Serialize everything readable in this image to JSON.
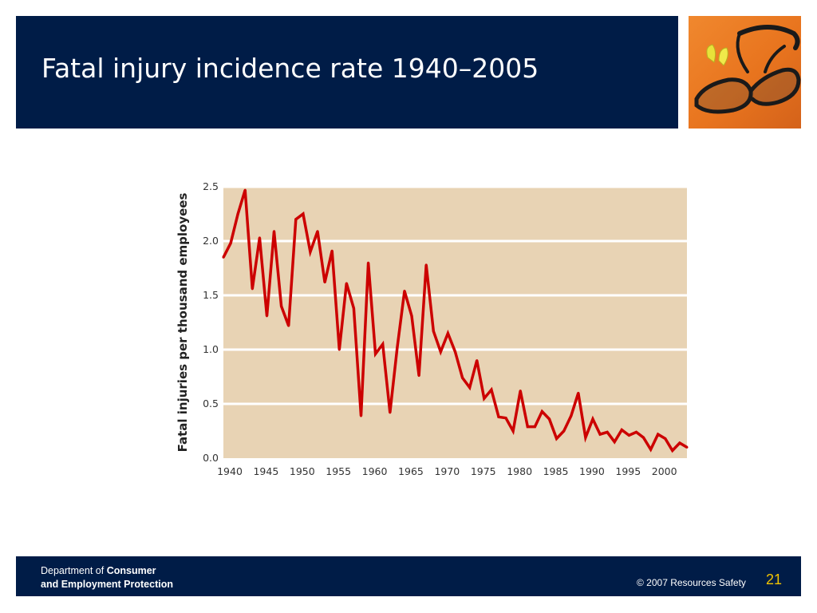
{
  "slide": {
    "title": "Fatal injury incidence rate 1940–2005",
    "page_number": "21"
  },
  "footer": {
    "dept_prefix": "Department of ",
    "dept_bold_1": "Consumer",
    "dept_bold_2": "and Employment Protection",
    "copyright": "© 2007 Resources Safety"
  },
  "photo": {
    "subject_icon": "safety-glasses-and-earplugs"
  },
  "colors": {
    "navy": "#001c47",
    "plot_background": "#e8d3b4",
    "line": "#cc0000",
    "gridline": "#ffffff",
    "page_number": "#f2c400"
  },
  "chart_data": {
    "type": "line",
    "title": "",
    "xlabel": "",
    "ylabel": "Fatal injuries per thousand employees",
    "xlim": [
      1940,
      2004
    ],
    "ylim": [
      0,
      2.5
    ],
    "x_ticks": [
      1940,
      1945,
      1950,
      1955,
      1960,
      1965,
      1970,
      1975,
      1980,
      1985,
      1990,
      1995,
      2000
    ],
    "x_tick_labels": [
      "1940",
      "1945",
      "1950",
      "1955",
      "1960",
      "1965",
      "1970",
      "1975",
      "1980",
      "1985",
      "1990",
      "1995",
      "2000"
    ],
    "y_ticks": [
      0,
      0.5,
      1.0,
      1.5,
      2.0,
      2.5
    ],
    "y_tick_labels": [
      "0.0",
      "0.5",
      "1.0",
      "1.5",
      "2.0",
      "2.5"
    ],
    "grid": true,
    "legend": "none",
    "series": [
      {
        "x": [
          1940,
          1941,
          1942,
          1943,
          1944,
          1945,
          1946,
          1947,
          1948,
          1949,
          1950,
          1951,
          1952,
          1953,
          1954,
          1955,
          1956,
          1957,
          1958,
          1959,
          1960,
          1961,
          1962,
          1963,
          1964,
          1965,
          1966,
          1967,
          1968,
          1969,
          1970,
          1971,
          1972,
          1973,
          1974,
          1975,
          1976,
          1977,
          1978,
          1979,
          1980,
          1981,
          1982,
          1983,
          1984,
          1985,
          1986,
          1987,
          1988,
          1989,
          1990,
          1991,
          1992,
          1993,
          1994,
          1995,
          1996,
          1997,
          1998,
          1999,
          2000,
          2001,
          2002,
          2003,
          2004
        ],
        "y": [
          1.85,
          1.98,
          2.25,
          2.47,
          1.56,
          2.03,
          1.31,
          2.09,
          1.4,
          1.22,
          2.2,
          2.25,
          1.9,
          2.09,
          1.62,
          1.91,
          1.0,
          1.61,
          1.38,
          0.39,
          1.8,
          0.96,
          1.05,
          0.42,
          1.02,
          1.54,
          1.31,
          0.76,
          1.78,
          1.17,
          0.98,
          1.15,
          0.98,
          0.74,
          0.65,
          0.9,
          0.55,
          0.63,
          0.38,
          0.37,
          0.25,
          0.62,
          0.29,
          0.29,
          0.43,
          0.36,
          0.18,
          0.25,
          0.39,
          0.6,
          0.19,
          0.36,
          0.22,
          0.24,
          0.15,
          0.26,
          0.21,
          0.24,
          0.19,
          0.08,
          0.22,
          0.18,
          0.07,
          0.14,
          0.1
        ]
      }
    ]
  }
}
